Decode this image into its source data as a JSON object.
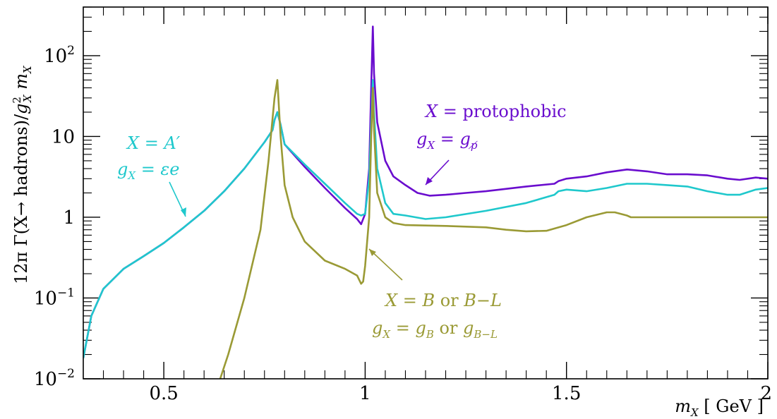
{
  "chart_data": {
    "type": "line",
    "title": "",
    "xlabel": "m_X [GeV]",
    "ylabel": "12π Γ(X→ hadrons)/g_X² m_X",
    "xlim": [
      0.3,
      2.0
    ],
    "ylim": [
      0.01,
      400
    ],
    "yscale": "log",
    "grid": false,
    "x_ticks": [
      {
        "value": 0.5,
        "label": "0.5"
      },
      {
        "value": 1.0,
        "label": "1"
      },
      {
        "value": 1.5,
        "label": "1.5"
      },
      {
        "value": 2.0,
        "label": "2"
      }
    ],
    "y_ticks": [
      {
        "value": 0.01,
        "base": "10",
        "exp": "−2"
      },
      {
        "value": 0.1,
        "base": "10",
        "exp": "−1"
      },
      {
        "value": 1,
        "base": "1",
        "exp": ""
      },
      {
        "value": 10,
        "base": "10",
        "exp": ""
      },
      {
        "value": 100,
        "base": "10",
        "exp": "2"
      }
    ],
    "series": [
      {
        "color": "#6a0dce",
        "points": [
          [
            0.3,
            0.018
          ],
          [
            0.32,
            0.06
          ],
          [
            0.35,
            0.13
          ],
          [
            0.4,
            0.23
          ],
          [
            0.45,
            0.33
          ],
          [
            0.5,
            0.48
          ],
          [
            0.55,
            0.75
          ],
          [
            0.6,
            1.2
          ],
          [
            0.65,
            2.1
          ],
          [
            0.7,
            4.0
          ],
          [
            0.75,
            8.5
          ],
          [
            0.77,
            12
          ],
          [
            0.775,
            16
          ],
          [
            0.782,
            20
          ],
          [
            0.79,
            14
          ],
          [
            0.8,
            8.0
          ],
          [
            0.85,
            4.2
          ],
          [
            0.9,
            2.3
          ],
          [
            0.95,
            1.3
          ],
          [
            0.98,
            0.95
          ],
          [
            0.99,
            0.82
          ],
          [
            1.0,
            1.1
          ],
          [
            1.01,
            4.0
          ],
          [
            1.015,
            40
          ],
          [
            1.019,
            230
          ],
          [
            1.022,
            60
          ],
          [
            1.03,
            15
          ],
          [
            1.05,
            5.0
          ],
          [
            1.07,
            3.2
          ],
          [
            1.1,
            2.5
          ],
          [
            1.13,
            2.0
          ],
          [
            1.16,
            1.85
          ],
          [
            1.2,
            1.9
          ],
          [
            1.25,
            2.0
          ],
          [
            1.3,
            2.1
          ],
          [
            1.4,
            2.4
          ],
          [
            1.47,
            2.6
          ],
          [
            1.48,
            2.8
          ],
          [
            1.5,
            3.0
          ],
          [
            1.55,
            3.2
          ],
          [
            1.6,
            3.6
          ],
          [
            1.65,
            3.9
          ],
          [
            1.7,
            3.7
          ],
          [
            1.75,
            3.4
          ],
          [
            1.8,
            3.4
          ],
          [
            1.85,
            3.3
          ],
          [
            1.9,
            3.0
          ],
          [
            1.93,
            2.9
          ],
          [
            1.97,
            3.1
          ],
          [
            2.0,
            3.0
          ]
        ]
      },
      {
        "color": "#1fc8cc",
        "points": [
          [
            0.3,
            0.018
          ],
          [
            0.32,
            0.06
          ],
          [
            0.35,
            0.13
          ],
          [
            0.4,
            0.23
          ],
          [
            0.45,
            0.33
          ],
          [
            0.5,
            0.48
          ],
          [
            0.55,
            0.75
          ],
          [
            0.6,
            1.2
          ],
          [
            0.65,
            2.1
          ],
          [
            0.7,
            4.0
          ],
          [
            0.75,
            8.5
          ],
          [
            0.77,
            12
          ],
          [
            0.775,
            16
          ],
          [
            0.782,
            20
          ],
          [
            0.79,
            14
          ],
          [
            0.8,
            8.0
          ],
          [
            0.85,
            4.5
          ],
          [
            0.9,
            2.6
          ],
          [
            0.95,
            1.5
          ],
          [
            0.98,
            1.1
          ],
          [
            0.99,
            1.05
          ],
          [
            1.0,
            1.1
          ],
          [
            1.01,
            3.0
          ],
          [
            1.015,
            15
          ],
          [
            1.019,
            50
          ],
          [
            1.022,
            20
          ],
          [
            1.03,
            4.0
          ],
          [
            1.05,
            1.5
          ],
          [
            1.07,
            1.1
          ],
          [
            1.1,
            1.05
          ],
          [
            1.15,
            0.95
          ],
          [
            1.2,
            1.0
          ],
          [
            1.3,
            1.2
          ],
          [
            1.4,
            1.5
          ],
          [
            1.47,
            1.9
          ],
          [
            1.48,
            2.1
          ],
          [
            1.5,
            2.2
          ],
          [
            1.55,
            2.1
          ],
          [
            1.6,
            2.3
          ],
          [
            1.65,
            2.6
          ],
          [
            1.7,
            2.6
          ],
          [
            1.75,
            2.5
          ],
          [
            1.8,
            2.4
          ],
          [
            1.85,
            2.1
          ],
          [
            1.9,
            1.9
          ],
          [
            1.93,
            1.9
          ],
          [
            1.97,
            2.2
          ],
          [
            2.0,
            2.3
          ]
        ]
      },
      {
        "color": "#9a9a35",
        "points": [
          [
            0.64,
            0.01
          ],
          [
            0.66,
            0.02
          ],
          [
            0.7,
            0.1
          ],
          [
            0.74,
            0.7
          ],
          [
            0.76,
            5
          ],
          [
            0.775,
            30
          ],
          [
            0.782,
            50
          ],
          [
            0.79,
            10
          ],
          [
            0.8,
            2.5
          ],
          [
            0.82,
            1.0
          ],
          [
            0.85,
            0.5
          ],
          [
            0.9,
            0.29
          ],
          [
            0.95,
            0.23
          ],
          [
            0.98,
            0.19
          ],
          [
            0.99,
            0.15
          ],
          [
            0.995,
            0.16
          ],
          [
            1.0,
            0.25
          ],
          [
            1.01,
            1.0
          ],
          [
            1.015,
            10
          ],
          [
            1.019,
            40
          ],
          [
            1.022,
            12
          ],
          [
            1.03,
            2.0
          ],
          [
            1.05,
            1.0
          ],
          [
            1.07,
            0.85
          ],
          [
            1.1,
            0.8
          ],
          [
            1.2,
            0.78
          ],
          [
            1.3,
            0.75
          ],
          [
            1.35,
            0.7
          ],
          [
            1.4,
            0.67
          ],
          [
            1.45,
            0.68
          ],
          [
            1.5,
            0.8
          ],
          [
            1.55,
            1.0
          ],
          [
            1.6,
            1.15
          ],
          [
            1.62,
            1.15
          ],
          [
            1.65,
            1.05
          ],
          [
            1.66,
            1.0
          ],
          [
            1.7,
            1.0
          ],
          [
            1.8,
            1.0
          ],
          [
            1.9,
            1.0
          ],
          [
            2.0,
            1.0
          ]
        ]
      }
    ],
    "annotations": [
      {
        "id": "protophobic-line1",
        "text": "X = protophobic",
        "color": "#6a0dce"
      },
      {
        "id": "protophobic-line2",
        "text": "g_X = g_p̸",
        "color": "#6a0dce"
      },
      {
        "id": "aprime-line1",
        "text": "X = A′",
        "color": "#1fc8cc"
      },
      {
        "id": "aprime-line2",
        "text": "g_X = εe",
        "color": "#1fc8cc"
      },
      {
        "id": "bl-line1",
        "text": "X = B or B−L",
        "color": "#9a9a35"
      },
      {
        "id": "bl-line2",
        "text": "g_X = g_B or g_B−L",
        "color": "#9a9a35"
      }
    ]
  },
  "labels": {
    "protophobic_line1_var": "X",
    "protophobic_line1_rest": " = protophobic",
    "protophobic_line2_var": "g",
    "protophobic_line2_sub": "X",
    "protophobic_line2_eq": " = ",
    "protophobic_line2_rhs": "g",
    "protophobic_line2_rhs_sub": "p̸",
    "aprime_line1": "X = A′",
    "aprime_line2_var": "g",
    "aprime_line2_sub": "X",
    "aprime_line2_rhs": " = εe",
    "bl_line1_a": "X = B",
    "bl_line1_or": " or ",
    "bl_line1_b": "B−L",
    "bl_line2_var": "g",
    "bl_line2_sub": "X",
    "bl_line2_eq": " = ",
    "bl_line2_rhs": "g",
    "bl_line2_rhs_sub": "B",
    "bl_line2_or": " or ",
    "bl_line2_rhs2": "g",
    "bl_line2_rhs2_sub": "B−L",
    "x_axis_var": "m",
    "x_axis_sub": "X",
    "x_axis_unit": " [ GeV ]",
    "y_axis_a": "12π Γ(X→ hadrons)/",
    "y_axis_g": "g",
    "y_axis_g_sup": "2",
    "y_axis_g_sub": "X",
    "y_axis_m": " m",
    "y_axis_m_sub": "X"
  }
}
